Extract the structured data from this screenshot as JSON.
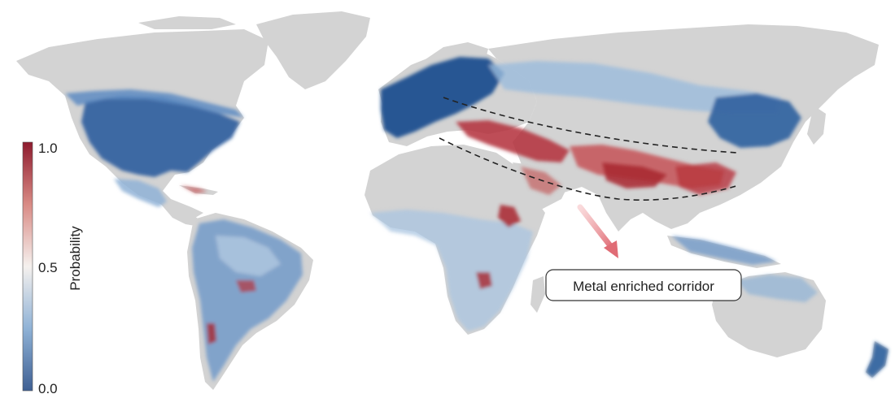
{
  "legend": {
    "title": "Probability",
    "ticks": [
      "1.0",
      "0.5",
      "0.0"
    ],
    "color_high": "#8e1b2e",
    "color_mid": "#f5f1ee",
    "color_low": "#3e5f93"
  },
  "annotation": {
    "label": "Metal enriched corridor"
  },
  "colors": {
    "land": "#d3d3d3",
    "ocean": "#ffffff",
    "corridor_line": "#222222",
    "arrow": "#e8838a"
  }
}
